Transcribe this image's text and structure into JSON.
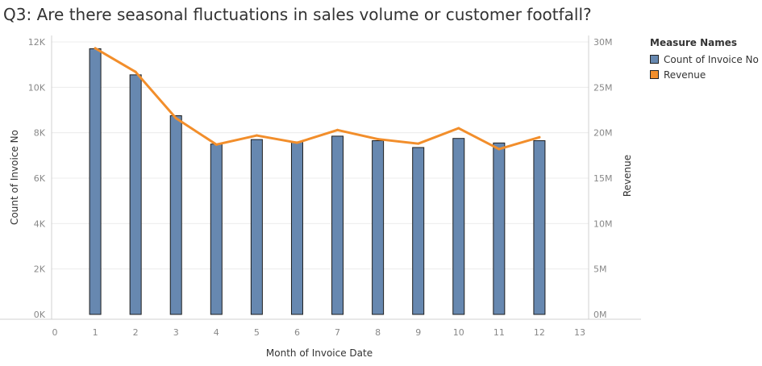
{
  "title": "Q3: Are there seasonal fluctuations in sales volume or customer footfall?",
  "legend": {
    "title": "Measure Names",
    "items": [
      {
        "label": "Count of Invoice No",
        "color": "#6788b0"
      },
      {
        "label": "Revenue",
        "color": "#f28e2b"
      }
    ]
  },
  "chart_data": {
    "type": "bar",
    "xlabel": "Month of Invoice Date",
    "ylabel_left": "Count of Invoice No",
    "ylabel_right": "Revenue",
    "x_ticks": [
      "0",
      "1",
      "2",
      "3",
      "4",
      "5",
      "6",
      "7",
      "8",
      "9",
      "10",
      "11",
      "12",
      "13"
    ],
    "x_range": [
      0,
      13
    ],
    "y_left_ticks": [
      "0K",
      "2K",
      "4K",
      "6K",
      "8K",
      "10K",
      "12K"
    ],
    "y_left_range": [
      0,
      12000
    ],
    "y_right_ticks": [
      "0M",
      "5M",
      "10M",
      "15M",
      "20M",
      "25M",
      "30M"
    ],
    "y_right_range": [
      0,
      30000000
    ],
    "grid": "horizontal",
    "legend_position": "right",
    "categories": [
      1,
      2,
      3,
      4,
      5,
      6,
      7,
      8,
      9,
      10,
      11,
      12
    ],
    "series": [
      {
        "name": "Count of Invoice No",
        "kind": "bar",
        "axis": "left",
        "color": "#6788b0",
        "values": [
          11700,
          10550,
          8750,
          7500,
          7700,
          7600,
          7850,
          7650,
          7350,
          7750,
          7550,
          7650
        ]
      },
      {
        "name": "Revenue",
        "kind": "line",
        "axis": "right",
        "color": "#f28e2b",
        "values": [
          29300000,
          26700000,
          21600000,
          18700000,
          19700000,
          18900000,
          20300000,
          19300000,
          18800000,
          20500000,
          18200000,
          19500000
        ]
      }
    ]
  }
}
